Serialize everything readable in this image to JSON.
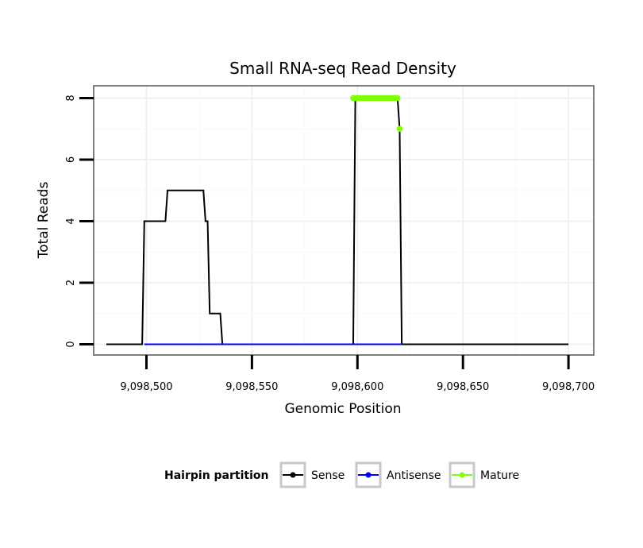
{
  "chart_data": {
    "type": "line",
    "title": "Small RNA-seq Read Density",
    "xlabel": "Genomic Position",
    "ylabel": "Total Reads",
    "xlim": [
      9098475,
      9098712
    ],
    "ylim": [
      -0.35,
      8.4
    ],
    "x_ticks": [
      9098500,
      9098550,
      9098600,
      9098650,
      9098700
    ],
    "x_tick_labels": [
      "9,098,500",
      "9,098,550",
      "9,098,600",
      "9,098,650",
      "9,098,700"
    ],
    "y_ticks": [
      0,
      2,
      4,
      6,
      8
    ],
    "y_tick_labels": [
      "0",
      "2",
      "4",
      "6",
      "8"
    ],
    "grid": true,
    "legend": {
      "title": "Hairpin partition",
      "position": "bottom",
      "entries": [
        {
          "label": "Sense",
          "color": "#000000"
        },
        {
          "label": "Antisense",
          "color": "#0000ff"
        },
        {
          "label": "Mature",
          "color": "#7fff00"
        }
      ]
    },
    "series": [
      {
        "name": "Sense",
        "color": "#000000",
        "points": [
          [
            9098481,
            0
          ],
          [
            9098498,
            0
          ],
          [
            9098499,
            4
          ],
          [
            9098509,
            4
          ],
          [
            9098510,
            5
          ],
          [
            9098527,
            5
          ],
          [
            9098528,
            4
          ],
          [
            9098529,
            4
          ],
          [
            9098530,
            1
          ],
          [
            9098535,
            1
          ],
          [
            9098536,
            0
          ],
          [
            9098598,
            0
          ],
          [
            9098599,
            8
          ],
          [
            9098619,
            8
          ],
          [
            9098620,
            7
          ],
          [
            9098621,
            0
          ],
          [
            9098700,
            0
          ]
        ]
      },
      {
        "name": "Antisense",
        "color": "#0000ff",
        "points": [
          [
            9098499,
            0
          ],
          [
            9098536,
            0
          ],
          [
            9098599,
            0
          ],
          [
            9098621,
            0
          ]
        ]
      },
      {
        "name": "Mature",
        "color": "#7fff00",
        "points": [
          [
            9098598,
            8
          ],
          [
            9098599,
            8
          ],
          [
            9098600,
            8
          ],
          [
            9098601,
            8
          ],
          [
            9098602,
            8
          ],
          [
            9098603,
            8
          ],
          [
            9098604,
            8
          ],
          [
            9098605,
            8
          ],
          [
            9098606,
            8
          ],
          [
            9098607,
            8
          ],
          [
            9098608,
            8
          ],
          [
            9098609,
            8
          ],
          [
            9098610,
            8
          ],
          [
            9098611,
            8
          ],
          [
            9098612,
            8
          ],
          [
            9098613,
            8
          ],
          [
            9098614,
            8
          ],
          [
            9098615,
            8
          ],
          [
            9098616,
            8
          ],
          [
            9098617,
            8
          ],
          [
            9098618,
            8
          ],
          [
            9098619,
            8
          ],
          [
            9098620,
            7
          ]
        ]
      }
    ]
  }
}
